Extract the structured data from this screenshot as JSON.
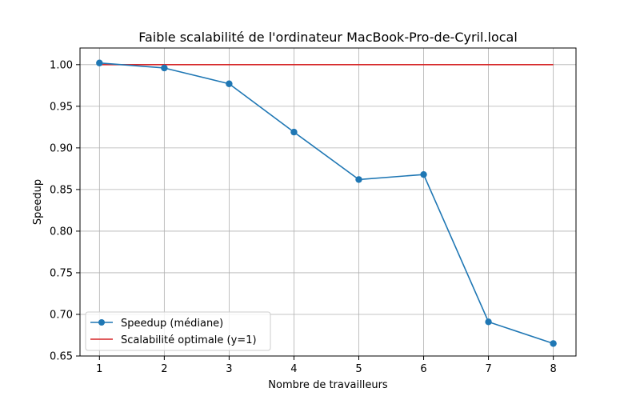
{
  "chart_data": {
    "type": "line",
    "title": "Faible scalabilité de l'ordinateur MacBook-Pro-de-Cyril.local",
    "xlabel": "Nombre de travailleurs",
    "ylabel": "Speedup",
    "xlim": [
      0.7,
      8.35
    ],
    "ylim": [
      0.65,
      1.02
    ],
    "xticks": [
      1,
      2,
      3,
      4,
      5,
      6,
      7,
      8
    ],
    "yticks": [
      0.65,
      0.7,
      0.75,
      0.8,
      0.85,
      0.9,
      0.95,
      1.0
    ],
    "ytick_labels": [
      "0.65",
      "0.70",
      "0.75",
      "0.80",
      "0.85",
      "0.90",
      "0.95",
      "1.00"
    ],
    "grid": true,
    "legend_position": "lower-left",
    "series": [
      {
        "name": "Speedup (médiane)",
        "color": "#1f77b4",
        "marker": "circle",
        "x": [
          1,
          2,
          3,
          4,
          5,
          6,
          7,
          8
        ],
        "y": [
          1.002,
          0.996,
          0.977,
          0.919,
          0.862,
          0.868,
          0.691,
          0.665
        ]
      },
      {
        "name": "Scalabilité optimale (y=1)",
        "color": "#d62728",
        "marker": "none",
        "x": [
          1,
          8
        ],
        "y": [
          1.0,
          1.0
        ]
      }
    ]
  }
}
